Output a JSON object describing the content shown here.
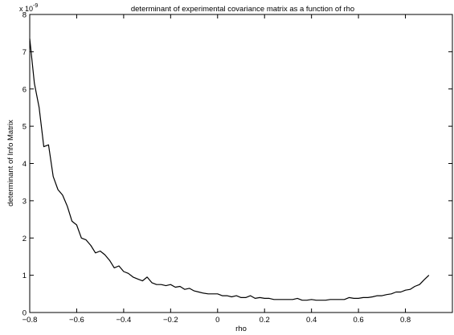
{
  "chart_data": {
    "type": "line",
    "title": "determinant of experimental covariance matrix as a function of rho",
    "xlabel": "rho",
    "ylabel": "determinant of Info Matrix",
    "y_exponent_label": "x 10",
    "y_exponent_power": "-9",
    "xlim": [
      -0.8,
      1.0
    ],
    "ylim": [
      0,
      8
    ],
    "x_ticks": [
      -0.8,
      -0.6,
      -0.4,
      -0.2,
      0,
      0.2,
      0.4,
      0.6,
      0.8
    ],
    "x_tick_labels": [
      "−0.8",
      "−0.6",
      "−0.4",
      "−0.2",
      "0",
      "0.2",
      "0.4",
      "0.6",
      "0.8"
    ],
    "y_ticks": [
      0,
      1,
      2,
      3,
      4,
      5,
      6,
      7,
      8
    ],
    "y_tick_labels": [
      "0",
      "1",
      "2",
      "3",
      "4",
      "5",
      "6",
      "7",
      "8"
    ],
    "grid": false,
    "line_color": "#000000",
    "series": [
      {
        "x": [
          -0.8,
          -0.78,
          -0.76,
          -0.74,
          -0.72,
          -0.7,
          -0.68,
          -0.66,
          -0.64,
          -0.62,
          -0.6,
          -0.58,
          -0.56,
          -0.54,
          -0.52,
          -0.5,
          -0.48,
          -0.46,
          -0.44,
          -0.42,
          -0.4,
          -0.38,
          -0.36,
          -0.34,
          -0.32,
          -0.3,
          -0.28,
          -0.26,
          -0.24,
          -0.22,
          -0.2,
          -0.18,
          -0.16,
          -0.14,
          -0.12,
          -0.1,
          -0.08,
          -0.06,
          -0.04,
          -0.02,
          0.0,
          0.02,
          0.04,
          0.06,
          0.08,
          0.1,
          0.12,
          0.14,
          0.16,
          0.18,
          0.2,
          0.22,
          0.24,
          0.26,
          0.28,
          0.3,
          0.32,
          0.34,
          0.36,
          0.38,
          0.4,
          0.42,
          0.44,
          0.46,
          0.48,
          0.5,
          0.52,
          0.54,
          0.56,
          0.58,
          0.6,
          0.62,
          0.64,
          0.66,
          0.68,
          0.7,
          0.72,
          0.74,
          0.76,
          0.78,
          0.8,
          0.82,
          0.84,
          0.86,
          0.88,
          0.9
        ],
        "y": [
          7.35,
          6.15,
          5.5,
          4.45,
          4.5,
          3.65,
          3.3,
          3.15,
          2.85,
          2.45,
          2.35,
          2.0,
          1.95,
          1.8,
          1.6,
          1.65,
          1.55,
          1.4,
          1.2,
          1.25,
          1.1,
          1.05,
          0.95,
          0.9,
          0.85,
          0.95,
          0.8,
          0.75,
          0.75,
          0.72,
          0.75,
          0.68,
          0.7,
          0.62,
          0.65,
          0.58,
          0.55,
          0.52,
          0.5,
          0.5,
          0.5,
          0.45,
          0.45,
          0.42,
          0.45,
          0.4,
          0.4,
          0.45,
          0.38,
          0.4,
          0.38,
          0.38,
          0.35,
          0.35,
          0.35,
          0.35,
          0.35,
          0.38,
          0.33,
          0.33,
          0.35,
          0.33,
          0.33,
          0.33,
          0.35,
          0.35,
          0.35,
          0.35,
          0.4,
          0.38,
          0.38,
          0.4,
          0.4,
          0.42,
          0.45,
          0.45,
          0.48,
          0.5,
          0.55,
          0.55,
          0.6,
          0.62,
          0.7,
          0.75,
          0.88,
          1.0
        ]
      }
    ]
  }
}
